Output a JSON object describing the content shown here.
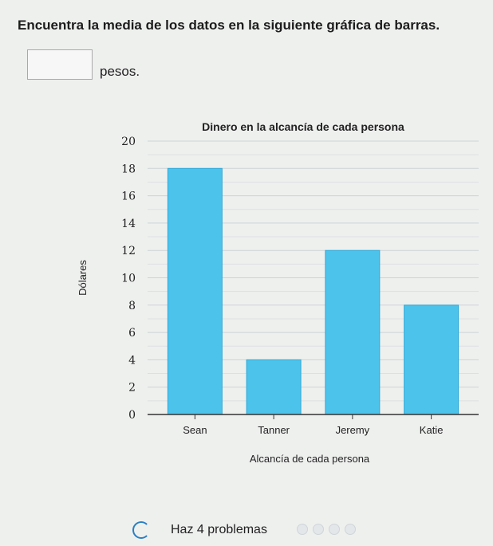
{
  "question": "Encuentra la media de los datos en la siguiente gráfica de barras.",
  "answer": {
    "value": "",
    "unit": "pesos."
  },
  "chart_data": {
    "type": "bar",
    "title": "Dinero en la alcancía de cada persona",
    "xlabel": "Alcancía de cada persona",
    "ylabel": "Dólares",
    "categories": [
      "Sean",
      "Tanner",
      "Jeremy",
      "Katie"
    ],
    "values": [
      18,
      4,
      12,
      8
    ],
    "ylim": [
      0,
      20
    ],
    "yticks": [
      0,
      2,
      4,
      6,
      8,
      10,
      12,
      14,
      16,
      18,
      20
    ],
    "grid": true,
    "bar_color": "#4cc3ea"
  },
  "footer": {
    "problems_label": "Haz 4 problemas",
    "progress_total": 4,
    "progress_done": 0
  }
}
